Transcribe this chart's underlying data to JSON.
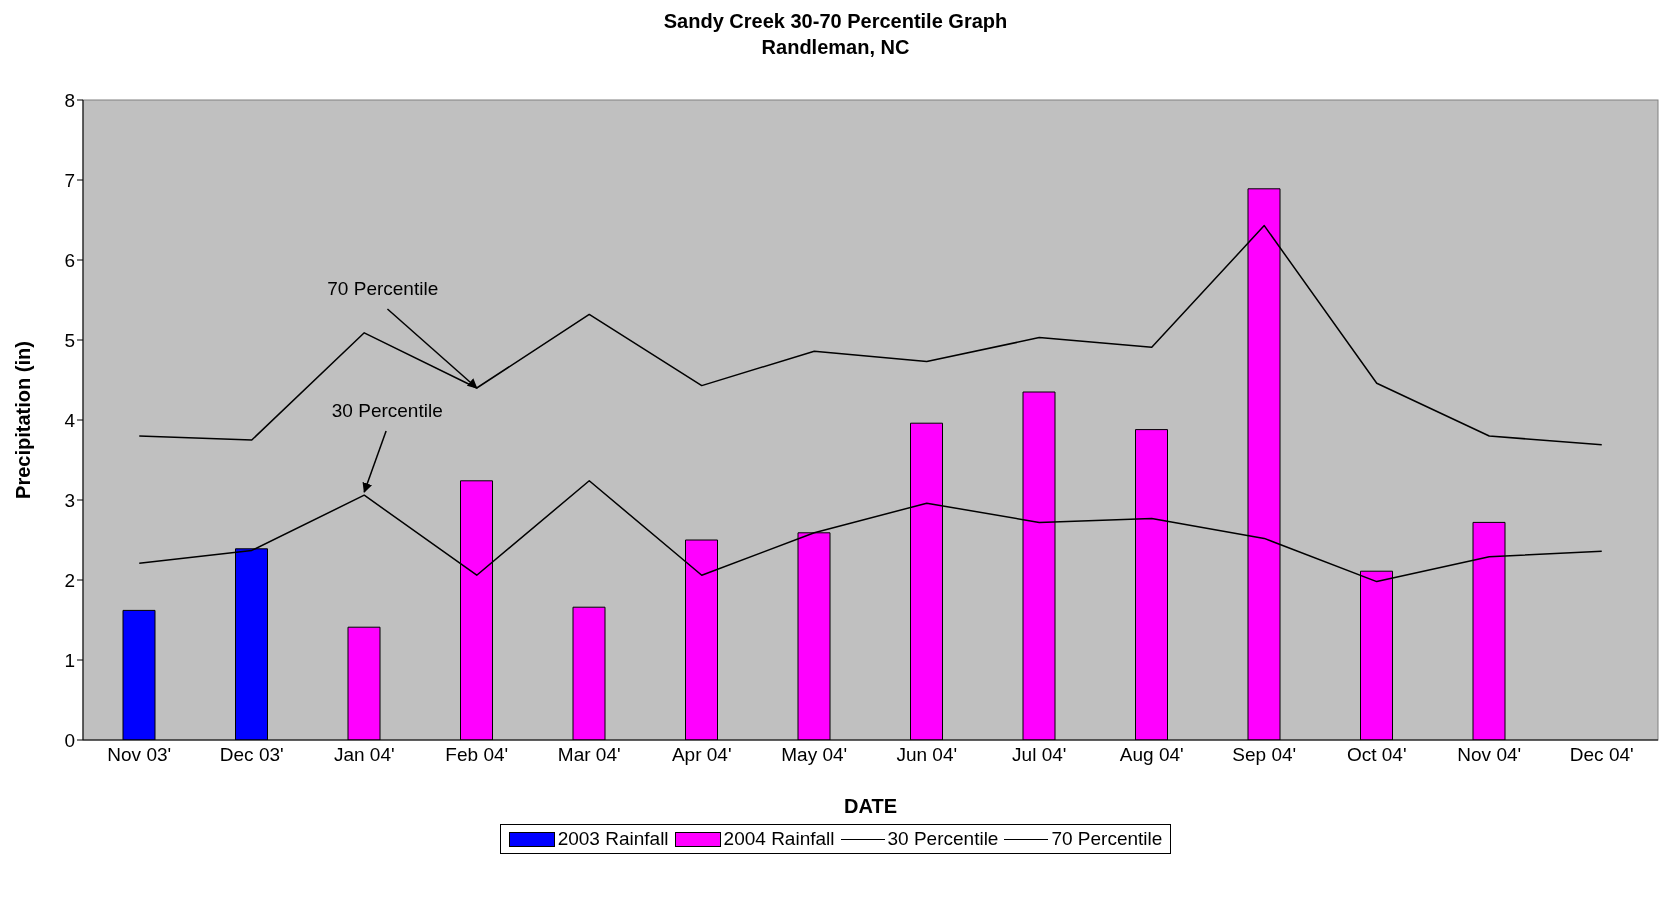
{
  "chart_data": {
    "type": "bar",
    "title": "Sandy Creek 30-70 Percentile Graph",
    "subtitle": "Randleman, NC",
    "xlabel": "DATE",
    "ylabel": "Precipitation (in)",
    "categories": [
      "Nov 03'",
      "Dec 03'",
      "Jan 04'",
      "Feb 04'",
      "Mar 04'",
      "Apr 04'",
      "May 04'",
      "Jun 04'",
      "Jul 04'",
      "Aug 04'",
      "Sep 04'",
      "Oct 04'",
      "Nov 04'",
      "Dec 04'"
    ],
    "series": [
      {
        "name": "2003 Rainfall",
        "color": "#0000ff",
        "values": [
          1.62,
          2.39,
          null,
          null,
          null,
          null,
          null,
          null,
          null,
          null,
          null,
          null,
          null,
          null
        ]
      },
      {
        "name": "2004 Rainfall",
        "color": "#ff00ff",
        "values": [
          null,
          null,
          1.41,
          3.24,
          1.66,
          2.5,
          2.59,
          3.96,
          4.35,
          3.88,
          6.89,
          2.11,
          2.72,
          null
        ]
      },
      {
        "name": "30 Percentile",
        "type": "line",
        "color": "#000000",
        "values": [
          2.21,
          2.37,
          3.06,
          2.06,
          3.24,
          2.06,
          2.59,
          2.96,
          2.72,
          2.77,
          2.52,
          1.98,
          2.29,
          2.36
        ]
      },
      {
        "name": "70 Percentile",
        "type": "line",
        "color": "#000000",
        "values": [
          3.8,
          3.75,
          5.09,
          4.4,
          5.32,
          4.43,
          4.86,
          4.73,
          5.03,
          4.91,
          6.43,
          4.46,
          3.8,
          3.69
        ]
      }
    ],
    "stacked": true,
    "ylim": [
      0,
      8
    ],
    "yticks": [
      0,
      1,
      2,
      3,
      4,
      5,
      6,
      7,
      8
    ],
    "legend": "bottom",
    "marker": "none",
    "annotations": [
      {
        "text": "70 Percentile",
        "x": "Feb 04'",
        "y": 4.4
      },
      {
        "text": "30 Percentile",
        "x": "Jan 04'",
        "y": 3.1
      }
    ]
  }
}
